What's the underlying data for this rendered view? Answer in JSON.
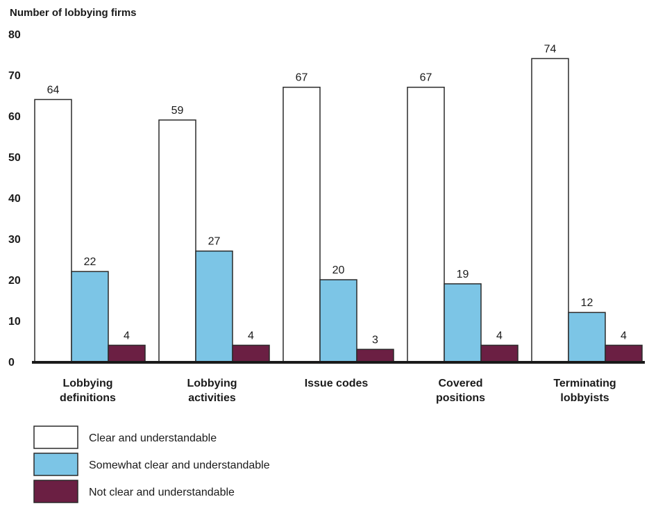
{
  "chart_data": {
    "type": "bar",
    "ylabel": "Number of lobbying firms",
    "xlabel": "",
    "ylim": [
      0,
      80
    ],
    "yticks": [
      0,
      10,
      20,
      30,
      40,
      50,
      60,
      70,
      80
    ],
    "grid": false,
    "legend_placement": "bottom-left",
    "categories": [
      [
        "Lobbying",
        "definitions"
      ],
      [
        "Lobbying",
        "activities"
      ],
      [
        "Issue codes"
      ],
      [
        "Covered",
        "positions"
      ],
      [
        "Terminating",
        "lobbyists"
      ]
    ],
    "series": [
      {
        "name": "Clear and understandable",
        "color": "#ffffff",
        "values": [
          64,
          59,
          67,
          67,
          74
        ]
      },
      {
        "name": "Somewhat clear and understandable",
        "color": "#7cc5e6",
        "values": [
          22,
          27,
          20,
          19,
          12
        ]
      },
      {
        "name": "Not clear and understandable",
        "color": "#6b1f43",
        "values": [
          4,
          4,
          3,
          4,
          4
        ]
      }
    ]
  }
}
